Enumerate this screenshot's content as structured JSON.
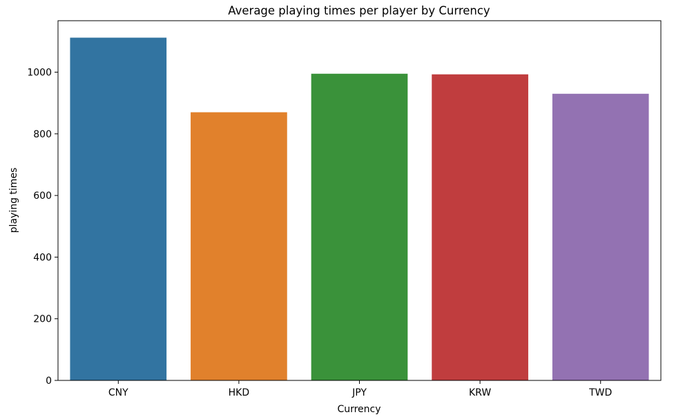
{
  "chart_data": {
    "type": "bar",
    "title": "Average playing times per player by Currency",
    "xlabel": "Currency",
    "ylabel": "playing times",
    "categories": [
      "CNY",
      "HKD",
      "JPY",
      "KRW",
      "TWD"
    ],
    "values": [
      1112,
      870,
      995,
      993,
      930
    ],
    "colors": [
      "#3274a1",
      "#e1812c",
      "#3a923a",
      "#c03d3e",
      "#9372b2"
    ],
    "ylim": [
      0,
      1167
    ],
    "yticks": [
      0,
      200,
      400,
      600,
      800,
      1000
    ],
    "grid": false,
    "legend": "none"
  }
}
